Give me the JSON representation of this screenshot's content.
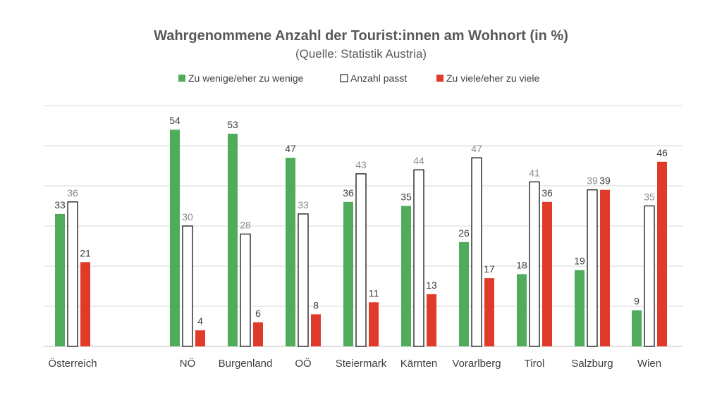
{
  "chart_data": {
    "type": "bar",
    "title": "Wahrgenommene Anzahl der Tourist:innen am Wohnort (in %)",
    "subtitle": "(Quelle: Statistik Austria)",
    "categories": [
      "Österreich",
      "NÖ",
      "Burgenland",
      "OÖ",
      "Steiermark",
      "Kärnten",
      "Vorarlberg",
      "Tirol",
      "Salzburg",
      "Wien"
    ],
    "series": [
      {
        "name": "Zu wenige/eher zu wenige",
        "color": "#4eac5b",
        "values": [
          33,
          54,
          53,
          47,
          36,
          35,
          26,
          18,
          19,
          9
        ]
      },
      {
        "name": "Anzahl passt",
        "color": "#ffffff",
        "values": [
          36,
          30,
          28,
          33,
          43,
          44,
          47,
          41,
          39,
          35
        ]
      },
      {
        "name": "Zu viele/eher zu viele",
        "color": "#e03a2b",
        "values": [
          21,
          4,
          6,
          8,
          11,
          13,
          17,
          36,
          39,
          46
        ]
      }
    ],
    "ylim": [
      0,
      60
    ],
    "grid": true,
    "legend_position": "top",
    "xlabel": "",
    "ylabel": ""
  }
}
